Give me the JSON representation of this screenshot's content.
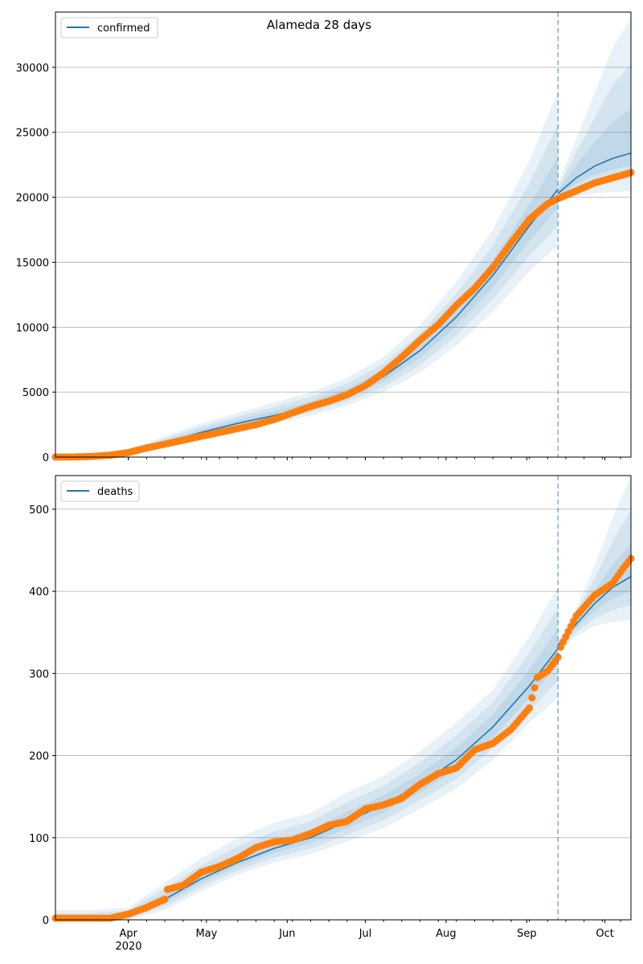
{
  "chart_data": [
    {
      "type": "line",
      "title": "Alameda 28 days",
      "legend": {
        "label": "confirmed",
        "placement": "top-left"
      },
      "x_start_date": "2020-03-04",
      "forecast_start_day": 193,
      "xlim_days": [
        0,
        221
      ],
      "ylim": [
        0,
        34260
      ],
      "yticks": [
        0,
        5000,
        10000,
        15000,
        20000,
        25000,
        30000
      ],
      "ytick_labels": [
        "0",
        "5000",
        "10000",
        "15000",
        "20000",
        "25000",
        "30000"
      ],
      "grid": "y",
      "observed": {
        "days": [
          0,
          7,
          14,
          21,
          28,
          35,
          42,
          49,
          56,
          63,
          70,
          77,
          84,
          91,
          98,
          105,
          112,
          119,
          126,
          133,
          140,
          147,
          154,
          161,
          168,
          175,
          182,
          189,
          193,
          200,
          207,
          214,
          221
        ],
        "values": [
          0,
          10,
          50,
          150,
          350,
          700,
          1000,
          1300,
          1600,
          1900,
          2200,
          2500,
          2900,
          3400,
          3900,
          4300,
          4800,
          5500,
          6500,
          7700,
          9000,
          10200,
          11700,
          13000,
          14600,
          16500,
          18300,
          19500,
          19900,
          20500,
          21100,
          21500,
          21900
        ]
      },
      "fit": {
        "days": [
          0,
          14,
          28,
          42,
          56,
          70,
          84,
          98,
          112,
          126,
          140,
          154,
          168,
          182,
          192.9
        ],
        "median": [
          0,
          30,
          300,
          1100,
          1900,
          2600,
          3200,
          3900,
          4900,
          6200,
          8200,
          10800,
          14000,
          17800,
          20600
        ],
        "lower": [
          0,
          0,
          150,
          800,
          1400,
          2000,
          2600,
          3200,
          4000,
          5000,
          6500,
          8600,
          11200,
          14300,
          16300
        ],
        "upper": [
          0,
          100,
          600,
          1600,
          2600,
          3400,
          4200,
          5000,
          6100,
          7700,
          10200,
          13500,
          17500,
          22800,
          28100
        ]
      },
      "forecast": {
        "days": [
          193,
          200,
          207,
          214,
          221
        ],
        "median": [
          20300,
          21500,
          22400,
          23000,
          23400
        ],
        "lower": [
          19600,
          20100,
          20300,
          20400,
          20500
        ],
        "upper": [
          21000,
          24500,
          28000,
          31500,
          33800
        ]
      }
    },
    {
      "type": "line",
      "legend": {
        "label": "deaths",
        "placement": "top-left"
      },
      "x_start_date": "2020-03-04",
      "forecast_start_day": 193,
      "xlim_days": [
        0,
        221
      ],
      "ylim": [
        0,
        541
      ],
      "yticks": [
        0,
        100,
        200,
        300,
        400,
        500
      ],
      "ytick_labels": [
        "0",
        "100",
        "200",
        "300",
        "400",
        "500"
      ],
      "xticks_days": [
        28,
        58,
        89,
        119,
        150,
        181,
        211
      ],
      "xtick_labels": [
        "Apr",
        "May",
        "Jun",
        "Jul",
        "Aug",
        "Sep",
        "Oct"
      ],
      "xtick_year": "2020",
      "grid": "y",
      "observed": {
        "days": [
          0,
          7,
          14,
          21,
          28,
          35,
          42,
          43,
          49,
          56,
          63,
          70,
          77,
          84,
          91,
          98,
          105,
          112,
          119,
          126,
          133,
          140,
          147,
          154,
          161,
          168,
          175,
          182,
          185,
          189,
          193,
          194,
          200,
          207,
          214,
          218,
          221
        ],
        "values": [
          2,
          2,
          2,
          2,
          7,
          15,
          25,
          37,
          42,
          58,
          65,
          75,
          88,
          95,
          97,
          105,
          115,
          120,
          135,
          140,
          148,
          165,
          178,
          185,
          207,
          215,
          232,
          258,
          295,
          303,
          320,
          332,
          370,
          395,
          410,
          428,
          440
        ]
      },
      "fit": {
        "days": [
          0,
          14,
          28,
          42,
          56,
          70,
          84,
          98,
          112,
          126,
          140,
          154,
          168,
          182,
          192.9
        ],
        "median": [
          0,
          0,
          5,
          25,
          50,
          70,
          87,
          100,
          120,
          140,
          165,
          195,
          235,
          285,
          330
        ],
        "lower": [
          0,
          0,
          0,
          12,
          35,
          55,
          70,
          80,
          95,
          112,
          135,
          160,
          195,
          240,
          270
        ],
        "upper": [
          12,
          12,
          15,
          45,
          75,
          100,
          118,
          130,
          155,
          175,
          205,
          240,
          280,
          345,
          405
        ]
      },
      "forecast": {
        "days": [
          193,
          200,
          207,
          214,
          221
        ],
        "median": [
          335,
          360,
          385,
          405,
          418
        ],
        "lower": [
          330,
          345,
          358,
          363,
          365
        ],
        "upper": [
          340,
          380,
          430,
          490,
          540
        ]
      }
    }
  ],
  "colors": {
    "line": "#1f77b4",
    "points": "#ff7f0e",
    "grid": "#b0b0b0"
  }
}
